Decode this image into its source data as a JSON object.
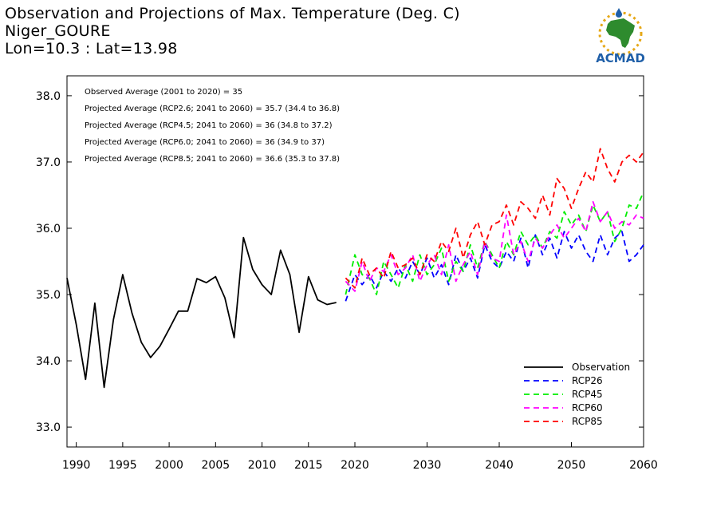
{
  "header": {
    "title_line1": "Observation and Projections of Max. Temperature (Deg. C)",
    "title_line2": "Niger_GOURE",
    "title_line3": "Lon=10.3 : Lat=13.98",
    "logo_text": "ACMAD"
  },
  "colors": {
    "observation": "#000000",
    "rcp26": "#0000ff",
    "rcp45": "#00ee00",
    "rcp60": "#ff00ff",
    "rcp85": "#ff0000",
    "logo_blue": "#1f5fa8",
    "logo_green": "#2e8b2e",
    "logo_gold": "#e6a817"
  },
  "chart_data": {
    "type": "line",
    "xlim": [
      1989,
      2060
    ],
    "ylim": [
      32.7,
      38.3
    ],
    "x_ticks": [
      1990,
      1995,
      2000,
      2005,
      2010,
      2015,
      2020,
      2030,
      2040,
      2050,
      2060
    ],
    "y_ticks": [
      33.0,
      34.0,
      35.0,
      36.0,
      37.0,
      38.0
    ],
    "y_tick_labels": [
      "33.0",
      "34.0",
      "35.0",
      "36.0",
      "37.0",
      "38.0"
    ],
    "annotations": [
      "Observed Average (2001 to 2020) = 35",
      "Projected Average (RCP2.6; 2041 to 2060) = 35.7 (34.4 to 36.8)",
      "Projected Average (RCP4.5; 2041 to 2060) = 36 (34.8 to 37.2)",
      "Projected Average (RCP6.0; 2041 to 2060) = 36 (34.9 to 37)",
      "Projected Average (RCP8.5; 2041 to 2060) = 36.6 (35.3 to 37.8)"
    ],
    "legend_position": "bottom-right",
    "series": [
      {
        "name": "Observation",
        "key": "observation",
        "style": "solid",
        "x": [
          1989,
          1990,
          1991,
          1992,
          1993,
          1994,
          1995,
          1996,
          1997,
          1998,
          1999,
          2000,
          2001,
          2002,
          2003,
          2004,
          2005,
          2006,
          2007,
          2008,
          2009,
          2010,
          2011,
          2012,
          2013,
          2014,
          2015,
          2016,
          2017,
          2018,
          2019
        ],
        "y": [
          35.25,
          34.55,
          33.72,
          34.87,
          33.6,
          34.62,
          35.3,
          34.72,
          34.28,
          34.05,
          34.22,
          34.48,
          34.75,
          34.75,
          35.24,
          35.18,
          35.27,
          34.95,
          34.35,
          35.86,
          35.38,
          35.15,
          35.0,
          35.67,
          35.3,
          34.43,
          35.27,
          34.92,
          34.85,
          34.88,
          null
        ]
      },
      {
        "name": "RCP26",
        "key": "rcp26",
        "style": "dashed",
        "x": [
          2019,
          2020,
          2021,
          2022,
          2023,
          2024,
          2025,
          2026,
          2027,
          2028,
          2029,
          2030,
          2031,
          2032,
          2033,
          2034,
          2035,
          2036,
          2037,
          2038,
          2039,
          2040,
          2041,
          2042,
          2043,
          2044,
          2045,
          2046,
          2047,
          2048,
          2049,
          2050,
          2051,
          2052,
          2053,
          2054,
          2055,
          2056,
          2057,
          2058,
          2059,
          2060
        ],
        "y": [
          34.9,
          35.3,
          35.15,
          35.3,
          35.1,
          35.35,
          35.2,
          35.4,
          35.25,
          35.5,
          35.3,
          35.55,
          35.25,
          35.45,
          35.15,
          35.6,
          35.35,
          35.55,
          35.25,
          35.75,
          35.5,
          35.4,
          35.65,
          35.5,
          35.85,
          35.4,
          35.9,
          35.6,
          35.85,
          35.55,
          35.95,
          35.7,
          35.9,
          35.65,
          35.5,
          35.9,
          35.6,
          35.85,
          35.95,
          35.5,
          35.6,
          35.75
        ]
      },
      {
        "name": "RCP45",
        "key": "rcp45",
        "style": "dashed",
        "x": [
          2019,
          2020,
          2021,
          2022,
          2023,
          2024,
          2025,
          2026,
          2027,
          2028,
          2029,
          2030,
          2031,
          2032,
          2033,
          2034,
          2035,
          2036,
          2037,
          2038,
          2039,
          2040,
          2041,
          2042,
          2043,
          2044,
          2045,
          2046,
          2047,
          2048,
          2049,
          2050,
          2051,
          2052,
          2053,
          2054,
          2055,
          2056,
          2057,
          2058,
          2059,
          2060
        ],
        "y": [
          35.0,
          35.6,
          35.3,
          35.25,
          35.0,
          35.5,
          35.3,
          35.1,
          35.45,
          35.2,
          35.6,
          35.3,
          35.45,
          35.7,
          35.2,
          35.5,
          35.35,
          35.75,
          35.4,
          35.8,
          35.6,
          35.4,
          35.8,
          35.6,
          35.95,
          35.75,
          35.9,
          35.7,
          35.95,
          35.85,
          36.25,
          36.05,
          36.2,
          35.95,
          36.35,
          36.1,
          36.25,
          35.8,
          36.0,
          36.35,
          36.3,
          36.55
        ]
      },
      {
        "name": "RCP60",
        "key": "rcp60",
        "style": "dashed",
        "x": [
          2019,
          2020,
          2021,
          2022,
          2023,
          2024,
          2025,
          2026,
          2027,
          2028,
          2029,
          2030,
          2031,
          2032,
          2033,
          2034,
          2035,
          2036,
          2037,
          2038,
          2039,
          2040,
          2041,
          2042,
          2043,
          2044,
          2045,
          2046,
          2047,
          2048,
          2049,
          2050,
          2051,
          2052,
          2053,
          2054,
          2055,
          2056,
          2057,
          2058,
          2059,
          2060
        ],
        "y": [
          35.2,
          35.05,
          35.5,
          35.2,
          35.4,
          35.35,
          35.6,
          35.3,
          35.4,
          35.6,
          35.2,
          35.45,
          35.6,
          35.3,
          35.75,
          35.2,
          35.45,
          35.65,
          35.3,
          35.8,
          35.55,
          35.5,
          36.2,
          35.6,
          35.8,
          35.5,
          35.85,
          35.7,
          35.9,
          36.05,
          35.85,
          36.0,
          36.15,
          35.95,
          36.4,
          36.1,
          36.25,
          36.0,
          36.1,
          36.05,
          36.2,
          36.15
        ]
      },
      {
        "name": "RCP85",
        "key": "rcp85",
        "style": "dashed",
        "x": [
          2019,
          2020,
          2021,
          2022,
          2023,
          2024,
          2025,
          2026,
          2027,
          2028,
          2029,
          2030,
          2031,
          2032,
          2033,
          2034,
          2035,
          2036,
          2037,
          2038,
          2039,
          2040,
          2041,
          2042,
          2043,
          2044,
          2045,
          2046,
          2047,
          2048,
          2049,
          2050,
          2051,
          2052,
          2053,
          2054,
          2055,
          2056,
          2057,
          2058,
          2059,
          2060
        ],
        "y": [
          35.25,
          35.1,
          35.55,
          35.3,
          35.4,
          35.25,
          35.65,
          35.4,
          35.45,
          35.55,
          35.3,
          35.6,
          35.5,
          35.8,
          35.65,
          36.0,
          35.55,
          35.9,
          36.1,
          35.75,
          36.05,
          36.1,
          36.35,
          36.05,
          36.4,
          36.3,
          36.15,
          36.5,
          36.2,
          36.75,
          36.6,
          36.3,
          36.6,
          36.85,
          36.7,
          37.2,
          36.9,
          36.7,
          37.0,
          37.1,
          37.0,
          37.15
        ]
      }
    ]
  }
}
